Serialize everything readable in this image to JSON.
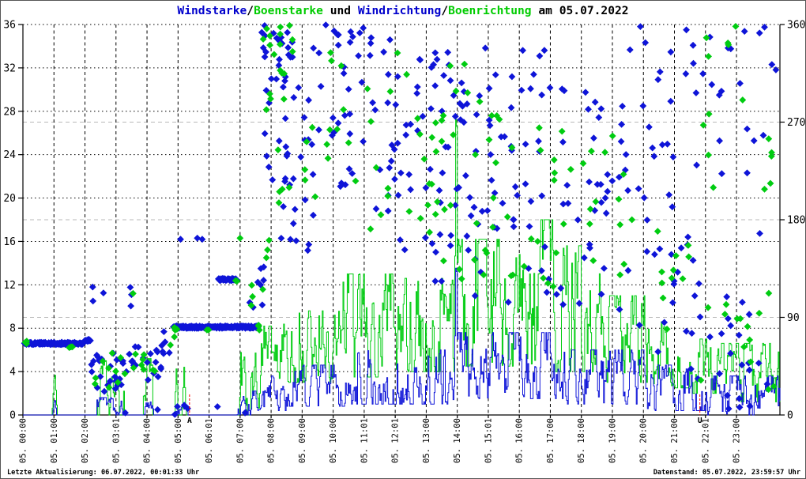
{
  "title": {
    "wind_label": "Windstarke",
    "slash1": "/",
    "gust_label": "Boenstarke",
    "mid": " und ",
    "wind_dir_label": "Windrichtung",
    "slash2": "/",
    "gust_dir_label": "Boenrichtung",
    "date_suffix": " am 05.07.2022"
  },
  "footer": {
    "left": "Letzte Aktualisierung: 06.07.2022, 00:01:33 Uhr",
    "right": "Datenstand: 05.07.2022, 23:59:57 Uhr"
  },
  "colors": {
    "wind_blue": "#0e14d8",
    "gust_green": "#00cc11",
    "title_blue": "#0000cc",
    "title_green": "#00cc00",
    "grid_black": "#000000",
    "grid_dir_gray": "#b8b8b8",
    "sun_marker_red": "#ff0000",
    "axis_black": "#000000"
  },
  "chart_data": {
    "type": "mixed",
    "title": "Windstarke/Boenstarke und Windrichtung/Boenrichtung am 05.07.2022",
    "legend_position": "none",
    "grid": "on",
    "y_left": {
      "min": 0,
      "max": 36,
      "ticks": [
        0,
        4,
        8,
        12,
        16,
        20,
        24,
        28,
        32,
        36
      ],
      "measures": "Windstarke/Boenstarke"
    },
    "y_right": {
      "min": 0,
      "max": 360,
      "ticks": [
        0,
        90,
        180,
        270,
        360
      ],
      "measures": "Windrichtung/Boenrichtung (Grad)"
    },
    "x_axis": {
      "range_hours": [
        0,
        24.4
      ],
      "tick_hours": [
        0,
        1,
        2,
        3,
        4,
        5,
        6,
        7,
        8,
        9,
        10,
        11,
        12,
        13,
        14,
        15,
        16,
        17,
        18,
        19,
        20,
        21,
        22,
        23
      ],
      "tick_labels": [
        "05. 00:00",
        "05. 01:00",
        "05. 02:00",
        "05. 03:01",
        "05. 04:00",
        "05. 05:00",
        "05. 06:01",
        "05. 07:00",
        "05. 08:00",
        "05. 09:00",
        "05. 10:00",
        "05. 11:01",
        "05. 12:01",
        "05. 13:00",
        "05. 14:00",
        "05. 15:01",
        "05. 16:00",
        "05. 17:00",
        "05. 18:00",
        "05. 19:00",
        "05. 20:00",
        "05. 21:00",
        "05. 22:01",
        "05. 23:00"
      ]
    },
    "sun_markers": [
      {
        "label": "A",
        "hour": 5.37
      },
      {
        "label": "U",
        "hour": 21.82
      }
    ],
    "series": [
      {
        "name": "Windstarke",
        "kind": "line",
        "axis": "left",
        "color_key": "wind_blue",
        "envelope_segments": [
          [
            0.95,
            1.08,
            0,
            1.6
          ],
          [
            2.35,
            3.2,
            0,
            1.6
          ],
          [
            3.9,
            4.2,
            0,
            1.2
          ],
          [
            4.9,
            5.3,
            0,
            1.0
          ],
          [
            6.85,
            7.7,
            0,
            2.2
          ],
          [
            7.7,
            8.5,
            0.4,
            3.6
          ],
          [
            8.5,
            10.5,
            0.8,
            4.6
          ],
          [
            10.5,
            13.9,
            1.0,
            6.0
          ],
          [
            13.9,
            14.02,
            3,
            16.5
          ],
          [
            14.02,
            17.5,
            1.5,
            7.6
          ],
          [
            17.5,
            20.0,
            1.0,
            6.0
          ],
          [
            20.0,
            22.0,
            0.4,
            4.6
          ],
          [
            22.0,
            24.4,
            0,
            3.6
          ]
        ]
      },
      {
        "name": "Boenstarke",
        "kind": "line",
        "axis": "left",
        "color_key": "gust_green",
        "envelope_segments": [
          [
            0.93,
            1.1,
            0,
            4.2
          ],
          [
            2.35,
            3.25,
            0,
            5.0
          ],
          [
            3.88,
            4.18,
            0,
            5.2
          ],
          [
            4.88,
            5.0,
            0,
            4.6
          ],
          [
            5.12,
            5.25,
            0,
            4.4
          ],
          [
            6.85,
            7.6,
            0,
            6.6
          ],
          [
            7.6,
            8.3,
            2.0,
            8.2
          ],
          [
            8.3,
            10.3,
            3.0,
            9.6
          ],
          [
            10.3,
            11.9,
            3.5,
            13.0
          ],
          [
            11.9,
            13.9,
            4.0,
            12.6
          ],
          [
            13.9,
            14.02,
            6,
            33.2
          ],
          [
            14.02,
            16.6,
            4.5,
            16.2
          ],
          [
            16.6,
            17.15,
            4.5,
            18.0
          ],
          [
            17.15,
            18.6,
            4.0,
            15.6
          ],
          [
            18.6,
            20.2,
            3.0,
            11.0
          ],
          [
            20.2,
            21.5,
            2.5,
            8.6
          ],
          [
            21.5,
            22.5,
            2.0,
            7.0
          ],
          [
            22.5,
            24.4,
            1.2,
            6.6
          ]
        ]
      },
      {
        "name": "Windrichtung",
        "kind": "scatter",
        "axis": "right",
        "color_key": "wind_blue",
        "steady_bands": [
          [
            0.05,
            1.95,
            66
          ],
          [
            2.0,
            2.18,
            69
          ],
          [
            4.85,
            7.6,
            81
          ],
          [
            6.3,
            6.9,
            125
          ]
        ],
        "clusters": [
          [
            2.2,
            3.25,
            20,
            58,
            26
          ],
          [
            3.3,
            4.45,
            32,
            63,
            18
          ],
          [
            2.2,
            3.6,
            95,
            122,
            4
          ],
          [
            4.3,
            4.8,
            55,
            80,
            8
          ],
          [
            7.25,
            7.8,
            95,
            145,
            7
          ],
          [
            3.2,
            7.3,
            0,
            10,
            5
          ],
          [
            7.7,
            8.7,
            285,
            360,
            26
          ],
          [
            7.7,
            8.7,
            200,
            285,
            12
          ],
          [
            8.3,
            9.4,
            148,
            205,
            10
          ],
          [
            8.7,
            10.5,
            195,
            335,
            24
          ],
          [
            9.0,
            10.2,
            338,
            360,
            6
          ],
          [
            10.5,
            12.5,
            180,
            335,
            30
          ],
          [
            10.4,
            11.9,
            335,
            360,
            8
          ],
          [
            11.9,
            14.5,
            148,
            232,
            22
          ],
          [
            12.5,
            14.5,
            232,
            335,
            28
          ],
          [
            14.5,
            17.0,
            168,
            300,
            34
          ],
          [
            14.5,
            17.0,
            300,
            357,
            10
          ],
          [
            13.0,
            17.0,
            88,
            160,
            12
          ],
          [
            17.0,
            19.5,
            178,
            302,
            30
          ],
          [
            17.0,
            19.5,
            90,
            178,
            10
          ],
          [
            19.5,
            21.5,
            58,
            200,
            16
          ],
          [
            19.5,
            21.5,
            200,
            330,
            14
          ],
          [
            19.5,
            21.2,
            332,
            360,
            4
          ],
          [
            21.5,
            24.3,
            0,
            100,
            22
          ],
          [
            21.5,
            24.3,
            228,
            332,
            14
          ],
          [
            21.2,
            24.2,
            332,
            360,
            8
          ],
          [
            20.0,
            24.0,
            100,
            228,
            10
          ]
        ],
        "points": [
          [
            2.25,
            118
          ],
          [
            3.5,
            111
          ],
          [
            5.08,
            162
          ],
          [
            5.62,
            163
          ],
          [
            5.78,
            162
          ],
          [
            7.67,
            135
          ],
          [
            3.3,
            2
          ],
          [
            5.2,
            9
          ],
          [
            7.16,
            2
          ]
        ]
      },
      {
        "name": "Boenrichtung",
        "kind": "scatter",
        "axis": "right",
        "color_key": "gust_green",
        "steady_bands": [],
        "clusters": [
          [
            0.03,
            0.18,
            63,
            69,
            3
          ],
          [
            1.38,
            1.6,
            62,
            68,
            3
          ],
          [
            4.85,
            5.05,
            78,
            84,
            2
          ],
          [
            5.85,
            6.05,
            78,
            84,
            2
          ],
          [
            6.82,
            6.95,
            122,
            128,
            2
          ],
          [
            7.4,
            7.65,
            78,
            84,
            3
          ],
          [
            2.3,
            3.3,
            24,
            60,
            10
          ],
          [
            3.4,
            4.45,
            35,
            66,
            8
          ],
          [
            4.6,
            5.0,
            58,
            82,
            3
          ],
          [
            7.3,
            7.95,
            95,
            170,
            6
          ],
          [
            7.7,
            8.85,
            280,
            360,
            14
          ],
          [
            8.0,
            9.6,
            188,
            280,
            10
          ],
          [
            7.9,
            8.6,
            338,
            360,
            4
          ],
          [
            9.5,
            12.5,
            200,
            340,
            16
          ],
          [
            11.0,
            14.0,
            140,
            220,
            14
          ],
          [
            12.5,
            15.0,
            220,
            332,
            16
          ],
          [
            14.0,
            17.2,
            118,
            200,
            18
          ],
          [
            15.0,
            17.2,
            200,
            300,
            12
          ],
          [
            17.2,
            19.5,
            128,
            262,
            16
          ],
          [
            19.5,
            21.5,
            68,
            180,
            12
          ],
          [
            21.5,
            24.3,
            18,
            120,
            14
          ],
          [
            21.5,
            24.3,
            200,
            300,
            10
          ],
          [
            22.0,
            24.1,
            330,
            360,
            5
          ]
        ],
        "points": [
          [
            3.55,
            112
          ],
          [
            7.0,
            163
          ],
          [
            7.36,
            101
          ],
          [
            13.3,
            185
          ]
        ]
      }
    ]
  }
}
